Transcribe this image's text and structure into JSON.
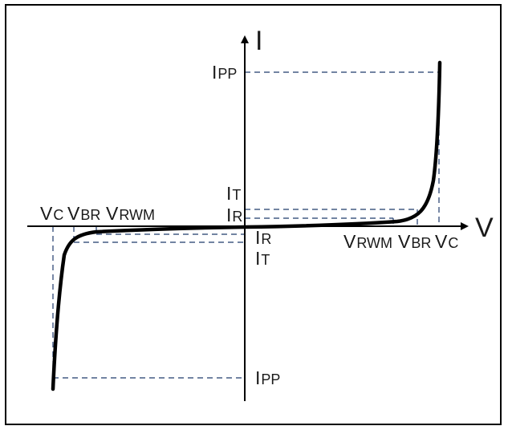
{
  "axes": {
    "x_label": "V",
    "y_label": "I"
  },
  "current_labels": {
    "ipp_top": {
      "main": "I",
      "sub": "PP"
    },
    "it_top": {
      "main": "I",
      "sub": "T"
    },
    "ir_top": {
      "main": "I",
      "sub": "R"
    },
    "ir_bottom": {
      "main": "I",
      "sub": "R"
    },
    "it_bottom": {
      "main": "I",
      "sub": "T"
    },
    "ipp_bottom": {
      "main": "I",
      "sub": "PP"
    }
  },
  "voltage_labels": {
    "left": {
      "vc": {
        "main": "V",
        "sub": "C"
      },
      "vbr": {
        "main": "V",
        "sub": "BR"
      },
      "vrwm": {
        "main": "V",
        "sub": "RWM"
      }
    },
    "right": {
      "vrwm": {
        "main": "V",
        "sub": "RWM"
      },
      "vbr": {
        "main": "V",
        "sub": "BR"
      },
      "vc": {
        "main": "V",
        "sub": "C"
      }
    }
  },
  "colors": {
    "curve": "#000000",
    "axes": "#000000",
    "guides": "#1f3a6b",
    "frame": "#000000"
  }
}
